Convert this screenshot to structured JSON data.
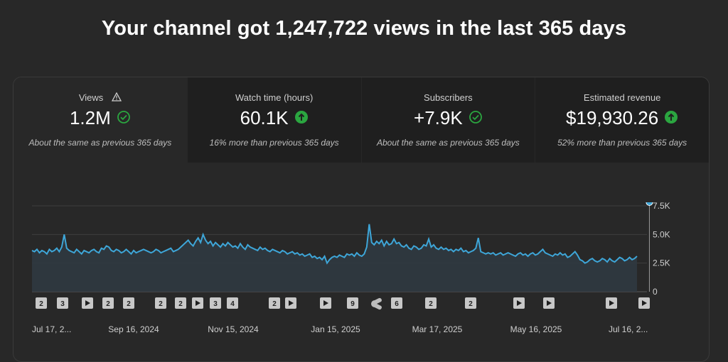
{
  "headline": "Your channel got 1,247,722 views in the last 365 days",
  "colors": {
    "accent_line": "#3ea6d8",
    "up_green": "#2ba640",
    "check_green": "#2ba640"
  },
  "tabs": [
    {
      "label": "Views",
      "value": "1.2M",
      "note": "About the same as previous 365 days",
      "icon": "check-circle-outline-icon",
      "extra_icon": "warning-triangle-icon",
      "active": true
    },
    {
      "label": "Watch time (hours)",
      "value": "60.1K",
      "note": "16% more than previous 365 days",
      "icon": "arrow-up-circle-icon",
      "active": false
    },
    {
      "label": "Subscribers",
      "value": "+7.9K",
      "note": "About the same as previous 365 days",
      "icon": "check-circle-outline-icon",
      "active": false
    },
    {
      "label": "Estimated revenue",
      "value": "$19,930.26",
      "note": "52% more than previous 365 days",
      "icon": "arrow-up-circle-icon",
      "active": false
    }
  ],
  "chart_data": {
    "type": "area",
    "x_tick_labels": [
      "Jul 17, 2...",
      "Sep 16, 2024",
      "Nov 15, 2024",
      "Jan 15, 2025",
      "Mar 17, 2025",
      "May 16, 2025",
      "Jul 16, 2..."
    ],
    "y_tick_labels": [
      "7.5K",
      "5.0K",
      "2.5K",
      "0"
    ],
    "ylim": [
      0,
      7500
    ],
    "values": [
      3600,
      3500,
      3700,
      3400,
      3600,
      3500,
      3300,
      3700,
      3500,
      3600,
      3800,
      3500,
      3900,
      5000,
      3800,
      3600,
      3500,
      3400,
      3700,
      3500,
      3300,
      3600,
      3500,
      3400,
      3600,
      3700,
      3500,
      3400,
      3800,
      3700,
      4000,
      3900,
      3600,
      3500,
      3700,
      3600,
      3400,
      3500,
      3700,
      3500,
      3300,
      3600,
      3400,
      3500,
      3600,
      3700,
      3600,
      3500,
      3400,
      3500,
      3700,
      3600,
      3400,
      3500,
      3600,
      3700,
      3800,
      3500,
      3600,
      3700,
      3900,
      4100,
      4300,
      4500,
      4200,
      4000,
      4400,
      4700,
      4300,
      5000,
      4500,
      4200,
      4400,
      4000,
      4300,
      4100,
      3900,
      4200,
      4000,
      4300,
      4100,
      3900,
      4000,
      3800,
      4200,
      3900,
      3700,
      4100,
      3900,
      3800,
      3700,
      3600,
      3900,
      3700,
      3800,
      3600,
      3500,
      3700,
      3600,
      3500,
      3400,
      3600,
      3500,
      3300,
      3400,
      3500,
      3300,
      3400,
      3200,
      3300,
      3100,
      3200,
      3300,
      3000,
      3100,
      2900,
      3000,
      2800,
      3100,
      2500,
      2800,
      3000,
      3100,
      3000,
      3200,
      3100,
      3000,
      3300,
      3200,
      3300,
      3100,
      3400,
      3200,
      3100,
      3300,
      3900,
      5900,
      4300,
      4100,
      4400,
      4200,
      4500,
      4000,
      4400,
      4100,
      4200,
      4600,
      4200,
      4300,
      4000,
      3900,
      4100,
      3800,
      3700,
      4000,
      3900,
      3700,
      3800,
      4100,
      4000,
      4600,
      3900,
      4100,
      3800,
      3700,
      3900,
      3700,
      3800,
      3600,
      3700,
      3500,
      3700,
      3600,
      3800,
      3500,
      3600,
      3400,
      3500,
      3600,
      3800,
      4700,
      3500,
      3400,
      3300,
      3400,
      3300,
      3400,
      3200,
      3300,
      3400,
      3200,
      3300,
      3400,
      3300,
      3200,
      3100,
      3300,
      3400,
      3200,
      3300,
      3100,
      3300,
      3400,
      3200,
      3300,
      3500,
      3700,
      3400,
      3300,
      3200,
      3100,
      3300,
      3200,
      3400,
      3200,
      3300,
      3000,
      3100,
      3300,
      3500,
      3200,
      2800,
      2700,
      2500,
      2600,
      2800,
      2900,
      2700,
      2600,
      2700,
      2900,
      2800,
      2600,
      2900,
      2700,
      2600,
      2800,
      3000,
      2900,
      2700,
      2800,
      3000,
      2800,
      2900,
      3100
    ],
    "hover_index": 249,
    "markers": [
      {
        "label": "2",
        "type": "number"
      },
      {
        "label": "3",
        "type": "number"
      },
      {
        "label": "",
        "type": "play"
      },
      {
        "label": "2",
        "type": "number"
      },
      {
        "label": "2",
        "type": "number"
      },
      {
        "label": "2",
        "type": "number"
      },
      {
        "label": "2",
        "type": "number"
      },
      {
        "label": "",
        "type": "play"
      },
      {
        "label": "3",
        "type": "number"
      },
      {
        "label": "4",
        "type": "number"
      },
      {
        "label": "2",
        "type": "number"
      },
      {
        "label": "",
        "type": "play"
      },
      {
        "label": "",
        "type": "play"
      },
      {
        "label": "9",
        "type": "number"
      },
      {
        "label": "",
        "type": "shorts"
      },
      {
        "label": "6",
        "type": "number"
      },
      {
        "label": "2",
        "type": "number"
      },
      {
        "label": "2",
        "type": "number"
      },
      {
        "label": "",
        "type": "play"
      },
      {
        "label": "",
        "type": "play"
      },
      {
        "label": "",
        "type": "play"
      },
      {
        "label": "",
        "type": "play"
      }
    ]
  }
}
